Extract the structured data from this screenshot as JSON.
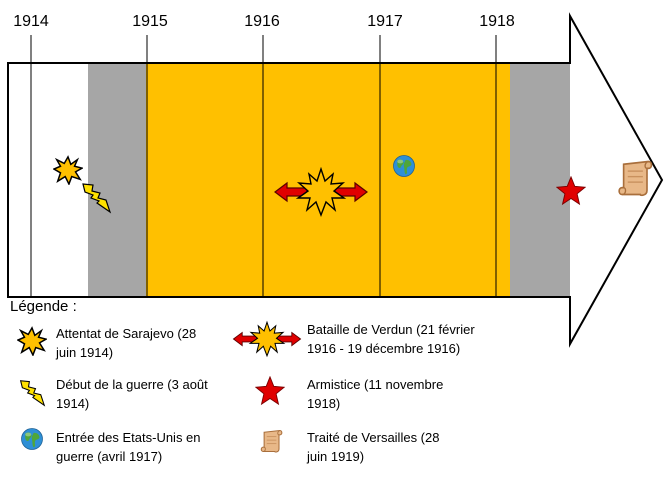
{
  "timeline": {
    "years": [
      "1914",
      "1915",
      "1916",
      "1917",
      "1918"
    ],
    "colors": {
      "prewar": "#ffffff",
      "transition": "#a6a6a6",
      "war": "#ffc000",
      "outline": "#000000"
    },
    "events": [
      {
        "name": "attentat-sarajevo",
        "icon": "explosion-icon"
      },
      {
        "name": "debut-guerre",
        "icon": "lightning-icon"
      },
      {
        "name": "bataille-verdun",
        "icon": "explosion-arrows-icon"
      },
      {
        "name": "entree-etats-unis",
        "icon": "globe-icon"
      },
      {
        "name": "armistice",
        "icon": "red-star-icon"
      },
      {
        "name": "traite-versailles",
        "icon": "scroll-icon"
      }
    ]
  },
  "legend": {
    "title": "Légende :",
    "items": [
      {
        "icon": "explosion-icon",
        "line1": "Attentat de Sarajevo (28",
        "line2": "juin 1914)"
      },
      {
        "icon": "explosion-arrows-icon",
        "line1": "Bataille de Verdun (21 février",
        "line2": "1916  - 19 décembre 1916)"
      },
      {
        "icon": "lightning-icon",
        "line1": "Début de la guerre (3 août",
        "line2": "1914)"
      },
      {
        "icon": "red-star-icon",
        "line1": "Armistice (11 novembre",
        "line2": "1918)"
      },
      {
        "icon": "globe-icon",
        "line1": "Entrée des Etats-Unis en",
        "line2": "guerre (avril 1917)"
      },
      {
        "icon": "scroll-icon",
        "line1": "Traité de Versailles (28",
        "line2": "juin 1919)"
      }
    ]
  }
}
